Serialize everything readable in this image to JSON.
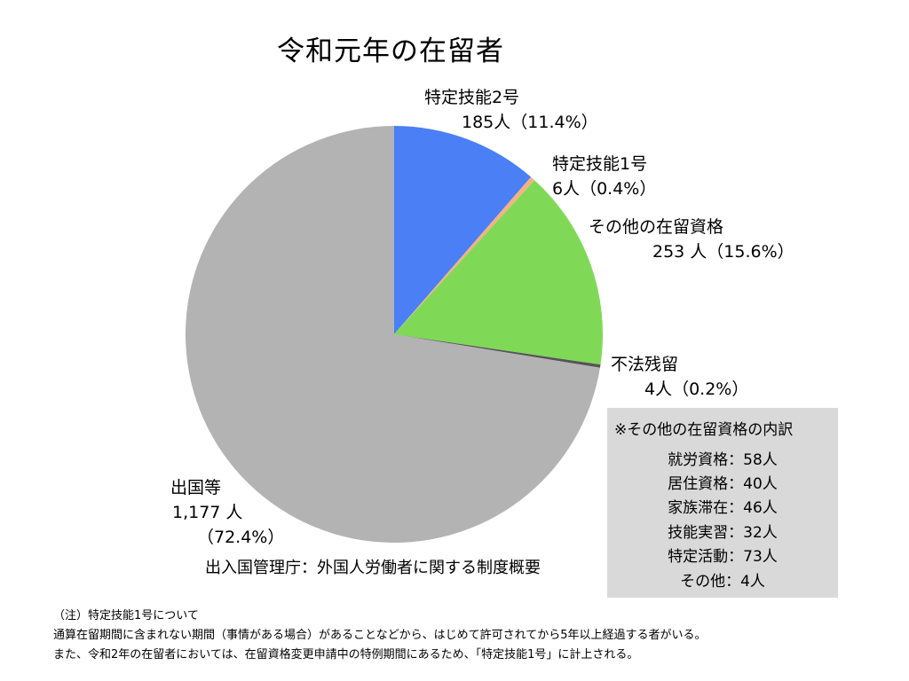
{
  "title": "令和元年の在留者",
  "chart_data": {
    "type": "pie",
    "title": "令和元年の在留者",
    "slices": [
      {
        "name": "特定技能2号",
        "value": 185,
        "value_label": "185人（11.4%）",
        "percent": 11.4,
        "color": "#4a7ff5"
      },
      {
        "name": "特定技能1号",
        "value": 6,
        "value_label": "6人（0.4%）",
        "percent": 0.4,
        "color": "#f4b183"
      },
      {
        "name": "その他の在留資格",
        "value": 253,
        "value_label": "253 人（15.6%）",
        "percent": 15.6,
        "color": "#7fd957"
      },
      {
        "name": "不法残留",
        "value": 4,
        "value_label": "4人（0.2%）",
        "percent": 0.2,
        "color": "#555555"
      },
      {
        "name": "出国等",
        "value": 1177,
        "value_label": "1,177 人",
        "percent_label": "（72.4%）",
        "percent": 72.4,
        "color": "#b3b3b3"
      }
    ],
    "start": "top, clockwise"
  },
  "source": "出入国管理庁：外国人労働者に関する制度概要",
  "breakdown": {
    "title": "※その他の在留資格の内訳",
    "items": [
      "就労資格：58人",
      "居住資格：40人",
      "家族滞在：46人",
      "技能実習：32人",
      "特定活動：73人",
      "その他：4人"
    ]
  },
  "notes": [
    "（注）特定技能1号について",
    "通算在留期間に含まれない期間（事情がある場合）があることなどから、はじめて許可されてから5年以上経過する者がいる。",
    "また、令和2年の在留者においては、在留資格変更申請中の特例期間にあるため、「特定技能1号」に計上される。"
  ]
}
